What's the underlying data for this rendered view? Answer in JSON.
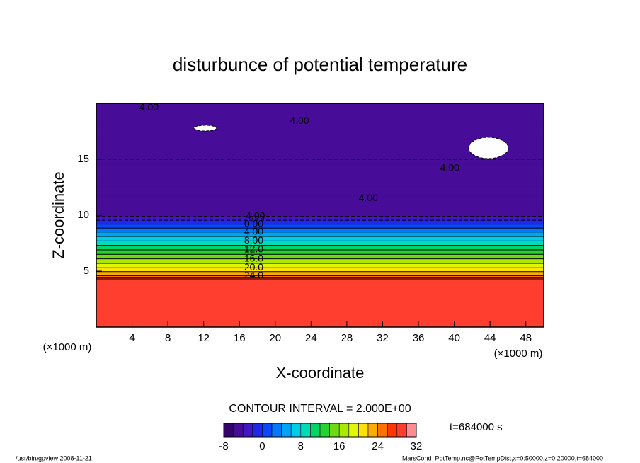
{
  "chart_data": {
    "type": "contour",
    "title": "disturbunce of potential temperature",
    "xlabel": "X-coordinate",
    "ylabel": "Z-coordinate",
    "unit": "(×1000 m)",
    "xlim": [
      0,
      50
    ],
    "xticks": [
      4,
      8,
      12,
      16,
      20,
      24,
      28,
      32,
      36,
      40,
      44,
      48
    ],
    "ylim": [
      0,
      20
    ],
    "yticks": [
      5,
      10,
      15
    ],
    "profile": {
      "z": [
        0,
        4.3,
        4.6,
        5.3,
        6.1,
        6.9,
        7.7,
        8.5,
        9.2,
        9.9,
        12,
        15,
        20
      ],
      "values": [
        28,
        28,
        24,
        20,
        16,
        12,
        8,
        4,
        0,
        -4,
        -5,
        -6,
        -5
      ]
    },
    "contour_interval": {
      "value": 2,
      "label": "CONTOUR INTERVAL = 2.000E+00"
    },
    "clim": [
      -8,
      32
    ],
    "cticks": [
      -8,
      0,
      8,
      16,
      24,
      32
    ],
    "colors": [
      "#2a0050",
      "#5010b0",
      "#1030ff",
      "#0090ff",
      "#00e0e0",
      "#00d040",
      "#90e000",
      "#ffff00",
      "#ff9000",
      "#ff1800",
      "#ffb0c0"
    ],
    "contour_labels": [
      {
        "value": -4,
        "label": "-4.00",
        "x": 5.7,
        "z": 19.6
      },
      {
        "value": 4,
        "label": "4.00",
        "x": 22.7,
        "z": 18.4
      },
      {
        "value": 4,
        "label": "4.00",
        "x": 39.5,
        "z": 14.2
      },
      {
        "value": 4,
        "label": "4.00",
        "x": 30.4,
        "z": 11.5
      },
      {
        "value": -4,
        "label": "-4.00",
        "x": 17.6,
        "z": 9.9
      },
      {
        "value": 0,
        "label": "0.00",
        "x": 17.6,
        "z": 9.2
      },
      {
        "value": 4,
        "label": "4.00",
        "x": 17.6,
        "z": 8.5
      },
      {
        "value": 8,
        "label": "8.00",
        "x": 17.6,
        "z": 7.7
      },
      {
        "value": 12,
        "label": "12.0",
        "x": 17.6,
        "z": 6.9
      },
      {
        "value": 16,
        "label": "16.0",
        "x": 17.6,
        "z": 6.1
      },
      {
        "value": 20,
        "label": "20.0",
        "x": 17.6,
        "z": 5.3
      },
      {
        "value": 24,
        "label": "24.0",
        "x": 17.6,
        "z": 4.6
      }
    ],
    "time_label": "t=684000 s",
    "footer_left": "/usr/bin/gpview   2008-11-21",
    "footer_right": "MarsCond_PotTemp.nc@PotTempDist,x=0:50000,z=0:20000,t=684000"
  }
}
